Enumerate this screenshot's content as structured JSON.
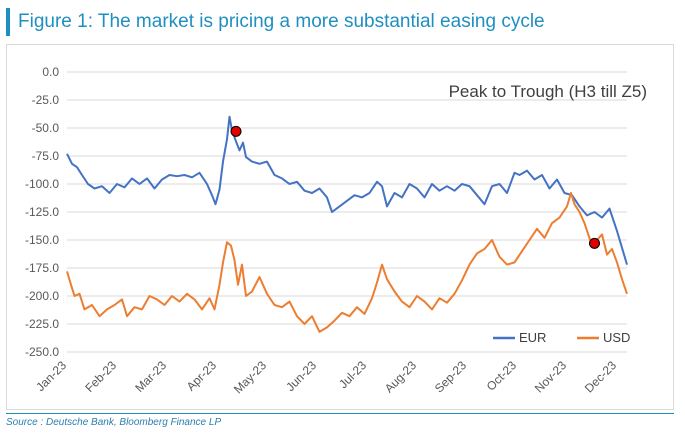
{
  "figure_title": "Figure 1: The market is pricing a more substantial easing cycle",
  "source_text": "Source : Deutsche Bank, Bloomberg Finance LP",
  "chart_data": {
    "type": "line",
    "annotation": "Peak to Trough (H3 till Z5)",
    "x_tick_labels": [
      "Jan-23",
      "Feb-23",
      "Mar-23",
      "Apr-23",
      "May-23",
      "Jun-23",
      "Jul-23",
      "Aug-23",
      "Sep-23",
      "Oct-23",
      "Nov-23",
      "Dec-23"
    ],
    "y_tick_labels": [
      "0.0",
      "-25.0",
      "-50.0",
      "-75.0",
      "-100.0",
      "-125.0",
      "-150.0",
      "-175.0",
      "-200.0",
      "-225.0",
      "-250.0"
    ],
    "ylim": [
      -250,
      0
    ],
    "xlim_months": [
      0,
      11.2
    ],
    "grid": "horizontal",
    "legend_position": "bottom-right",
    "x_unit": "months since Jan-23",
    "series": [
      {
        "name": "EUR",
        "color": "#4472c4",
        "points": [
          [
            0.0,
            -73
          ],
          [
            0.1,
            -82
          ],
          [
            0.2,
            -85
          ],
          [
            0.3,
            -92
          ],
          [
            0.42,
            -100
          ],
          [
            0.55,
            -104
          ],
          [
            0.7,
            -102
          ],
          [
            0.85,
            -108
          ],
          [
            1.0,
            -100
          ],
          [
            1.15,
            -103
          ],
          [
            1.3,
            -95
          ],
          [
            1.45,
            -100
          ],
          [
            1.6,
            -95
          ],
          [
            1.75,
            -104
          ],
          [
            1.9,
            -96
          ],
          [
            2.05,
            -92
          ],
          [
            2.2,
            -93
          ],
          [
            2.35,
            -92
          ],
          [
            2.5,
            -94
          ],
          [
            2.65,
            -90
          ],
          [
            2.8,
            -100
          ],
          [
            2.9,
            -110
          ],
          [
            2.97,
            -118
          ],
          [
            3.05,
            -105
          ],
          [
            3.12,
            -80
          ],
          [
            3.2,
            -60
          ],
          [
            3.25,
            -40
          ],
          [
            3.3,
            -52
          ],
          [
            3.38,
            -62
          ],
          [
            3.45,
            -70
          ],
          [
            3.52,
            -63
          ],
          [
            3.58,
            -76
          ],
          [
            3.7,
            -80
          ],
          [
            3.85,
            -82
          ],
          [
            4.0,
            -80
          ],
          [
            4.15,
            -92
          ],
          [
            4.3,
            -95
          ],
          [
            4.45,
            -100
          ],
          [
            4.6,
            -98
          ],
          [
            4.75,
            -106
          ],
          [
            4.9,
            -108
          ],
          [
            5.05,
            -104
          ],
          [
            5.2,
            -112
          ],
          [
            5.3,
            -125
          ],
          [
            5.45,
            -120
          ],
          [
            5.6,
            -115
          ],
          [
            5.75,
            -110
          ],
          [
            5.9,
            -112
          ],
          [
            6.05,
            -108
          ],
          [
            6.2,
            -98
          ],
          [
            6.3,
            -102
          ],
          [
            6.4,
            -120
          ],
          [
            6.55,
            -108
          ],
          [
            6.7,
            -112
          ],
          [
            6.85,
            -100
          ],
          [
            7.0,
            -104
          ],
          [
            7.15,
            -112
          ],
          [
            7.3,
            -100
          ],
          [
            7.45,
            -106
          ],
          [
            7.6,
            -102
          ],
          [
            7.75,
            -106
          ],
          [
            7.9,
            -100
          ],
          [
            8.05,
            -102
          ],
          [
            8.2,
            -110
          ],
          [
            8.35,
            -118
          ],
          [
            8.5,
            -102
          ],
          [
            8.65,
            -100
          ],
          [
            8.8,
            -108
          ],
          [
            8.95,
            -90
          ],
          [
            9.05,
            -92
          ],
          [
            9.2,
            -88
          ],
          [
            9.35,
            -96
          ],
          [
            9.5,
            -92
          ],
          [
            9.65,
            -104
          ],
          [
            9.8,
            -96
          ],
          [
            9.95,
            -108
          ],
          [
            10.1,
            -110
          ],
          [
            10.25,
            -120
          ],
          [
            10.4,
            -128
          ],
          [
            10.55,
            -125
          ],
          [
            10.7,
            -130
          ],
          [
            10.85,
            -122
          ],
          [
            11.0,
            -142
          ],
          [
            11.1,
            -157
          ],
          [
            11.2,
            -172
          ]
        ]
      },
      {
        "name": "USD",
        "color": "#ed7d31",
        "points": [
          [
            0.0,
            -178
          ],
          [
            0.08,
            -190
          ],
          [
            0.15,
            -200
          ],
          [
            0.25,
            -198
          ],
          [
            0.35,
            -212
          ],
          [
            0.5,
            -208
          ],
          [
            0.65,
            -218
          ],
          [
            0.8,
            -212
          ],
          [
            0.95,
            -208
          ],
          [
            1.1,
            -203
          ],
          [
            1.2,
            -218
          ],
          [
            1.35,
            -210
          ],
          [
            1.5,
            -212
          ],
          [
            1.65,
            -200
          ],
          [
            1.8,
            -203
          ],
          [
            1.95,
            -208
          ],
          [
            2.1,
            -200
          ],
          [
            2.25,
            -205
          ],
          [
            2.4,
            -198
          ],
          [
            2.55,
            -203
          ],
          [
            2.7,
            -212
          ],
          [
            2.85,
            -202
          ],
          [
            2.95,
            -212
          ],
          [
            3.05,
            -190
          ],
          [
            3.12,
            -170
          ],
          [
            3.2,
            -152
          ],
          [
            3.28,
            -155
          ],
          [
            3.35,
            -168
          ],
          [
            3.42,
            -190
          ],
          [
            3.5,
            -172
          ],
          [
            3.58,
            -200
          ],
          [
            3.7,
            -196
          ],
          [
            3.85,
            -183
          ],
          [
            4.0,
            -198
          ],
          [
            4.15,
            -208
          ],
          [
            4.3,
            -210
          ],
          [
            4.45,
            -205
          ],
          [
            4.6,
            -218
          ],
          [
            4.75,
            -225
          ],
          [
            4.9,
            -218
          ],
          [
            5.05,
            -232
          ],
          [
            5.2,
            -228
          ],
          [
            5.35,
            -222
          ],
          [
            5.5,
            -215
          ],
          [
            5.65,
            -218
          ],
          [
            5.8,
            -210
          ],
          [
            5.95,
            -216
          ],
          [
            6.1,
            -202
          ],
          [
            6.2,
            -188
          ],
          [
            6.3,
            -172
          ],
          [
            6.4,
            -185
          ],
          [
            6.55,
            -196
          ],
          [
            6.7,
            -205
          ],
          [
            6.85,
            -210
          ],
          [
            7.0,
            -200
          ],
          [
            7.15,
            -205
          ],
          [
            7.3,
            -212
          ],
          [
            7.45,
            -202
          ],
          [
            7.6,
            -206
          ],
          [
            7.75,
            -198
          ],
          [
            7.9,
            -186
          ],
          [
            8.05,
            -172
          ],
          [
            8.2,
            -162
          ],
          [
            8.35,
            -158
          ],
          [
            8.5,
            -150
          ],
          [
            8.65,
            -165
          ],
          [
            8.8,
            -172
          ],
          [
            8.95,
            -170
          ],
          [
            9.1,
            -160
          ],
          [
            9.25,
            -150
          ],
          [
            9.4,
            -140
          ],
          [
            9.55,
            -148
          ],
          [
            9.7,
            -135
          ],
          [
            9.85,
            -130
          ],
          [
            10.0,
            -120
          ],
          [
            10.08,
            -108
          ],
          [
            10.15,
            -118
          ],
          [
            10.25,
            -125
          ],
          [
            10.35,
            -135
          ],
          [
            10.5,
            -155
          ],
          [
            10.6,
            -150
          ],
          [
            10.7,
            -145
          ],
          [
            10.8,
            -163
          ],
          [
            10.9,
            -158
          ],
          [
            11.0,
            -170
          ],
          [
            11.1,
            -185
          ],
          [
            11.2,
            -198
          ]
        ]
      }
    ],
    "markers": [
      {
        "series": "EUR",
        "x": 3.38,
        "y": -53,
        "color": "#e00000"
      },
      {
        "series": "USD",
        "x": 10.55,
        "y": -153,
        "color": "#e00000"
      }
    ]
  }
}
